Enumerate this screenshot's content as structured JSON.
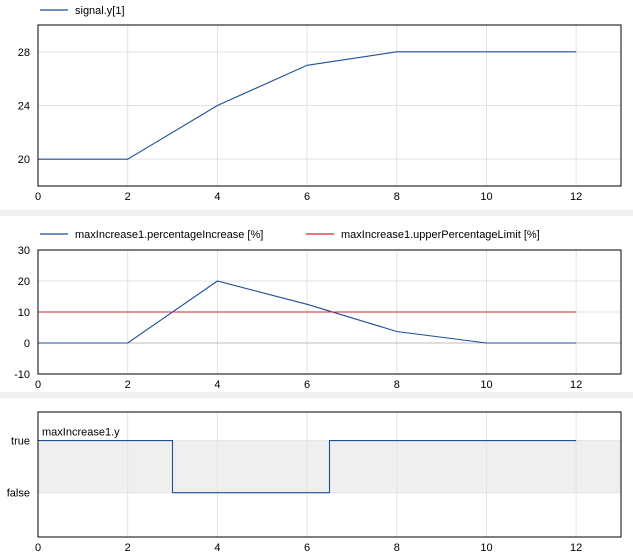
{
  "chart_data": [
    {
      "type": "line",
      "xlim": [
        0,
        13
      ],
      "ylim": [
        18,
        30
      ],
      "xticks": [
        0,
        2,
        4,
        6,
        8,
        10,
        12
      ],
      "yticks": [
        20,
        24,
        28
      ],
      "grid": true,
      "legend_position": "top-left",
      "series": [
        {
          "name": "signal.y[1]",
          "color": "#1f4e9b",
          "x": [
            0,
            2,
            4,
            6,
            8,
            12
          ],
          "y": [
            20,
            20,
            24,
            27,
            28,
            28
          ]
        }
      ]
    },
    {
      "type": "line",
      "xlim": [
        0,
        13
      ],
      "ylim": [
        -10,
        30
      ],
      "xticks": [
        0,
        2,
        4,
        6,
        8,
        10,
        12
      ],
      "yticks": [
        -10,
        0,
        10,
        20,
        30
      ],
      "grid": true,
      "legend_position": "top-left",
      "series": [
        {
          "name": "maxIncrease1.percentageIncrease [%]",
          "color": "#1f4e9b",
          "x": [
            0,
            2,
            4,
            6,
            8,
            10,
            12
          ],
          "y": [
            0,
            0,
            20,
            12.5,
            3.7,
            0,
            0
          ]
        },
        {
          "name": "maxIncrease1.upperPercentageLimit [%]",
          "color": "#d62728",
          "x": [
            0,
            12
          ],
          "y": [
            10,
            10
          ]
        }
      ]
    },
    {
      "type": "line",
      "xlim": [
        0,
        13
      ],
      "ylim": [
        -0.85,
        1.55
      ],
      "xticks": [
        0,
        2,
        4,
        6,
        8,
        10,
        12
      ],
      "ytick_labels": [
        "false",
        "true"
      ],
      "grid": true,
      "legend_position": "top-left",
      "series": [
        {
          "name": "maxIncrease1.y",
          "color": "#1f4e9b",
          "x": [
            0,
            3,
            3,
            6.5,
            6.5,
            12
          ],
          "y": [
            1,
            1,
            0,
            0,
            1,
            1
          ]
        }
      ]
    }
  ]
}
